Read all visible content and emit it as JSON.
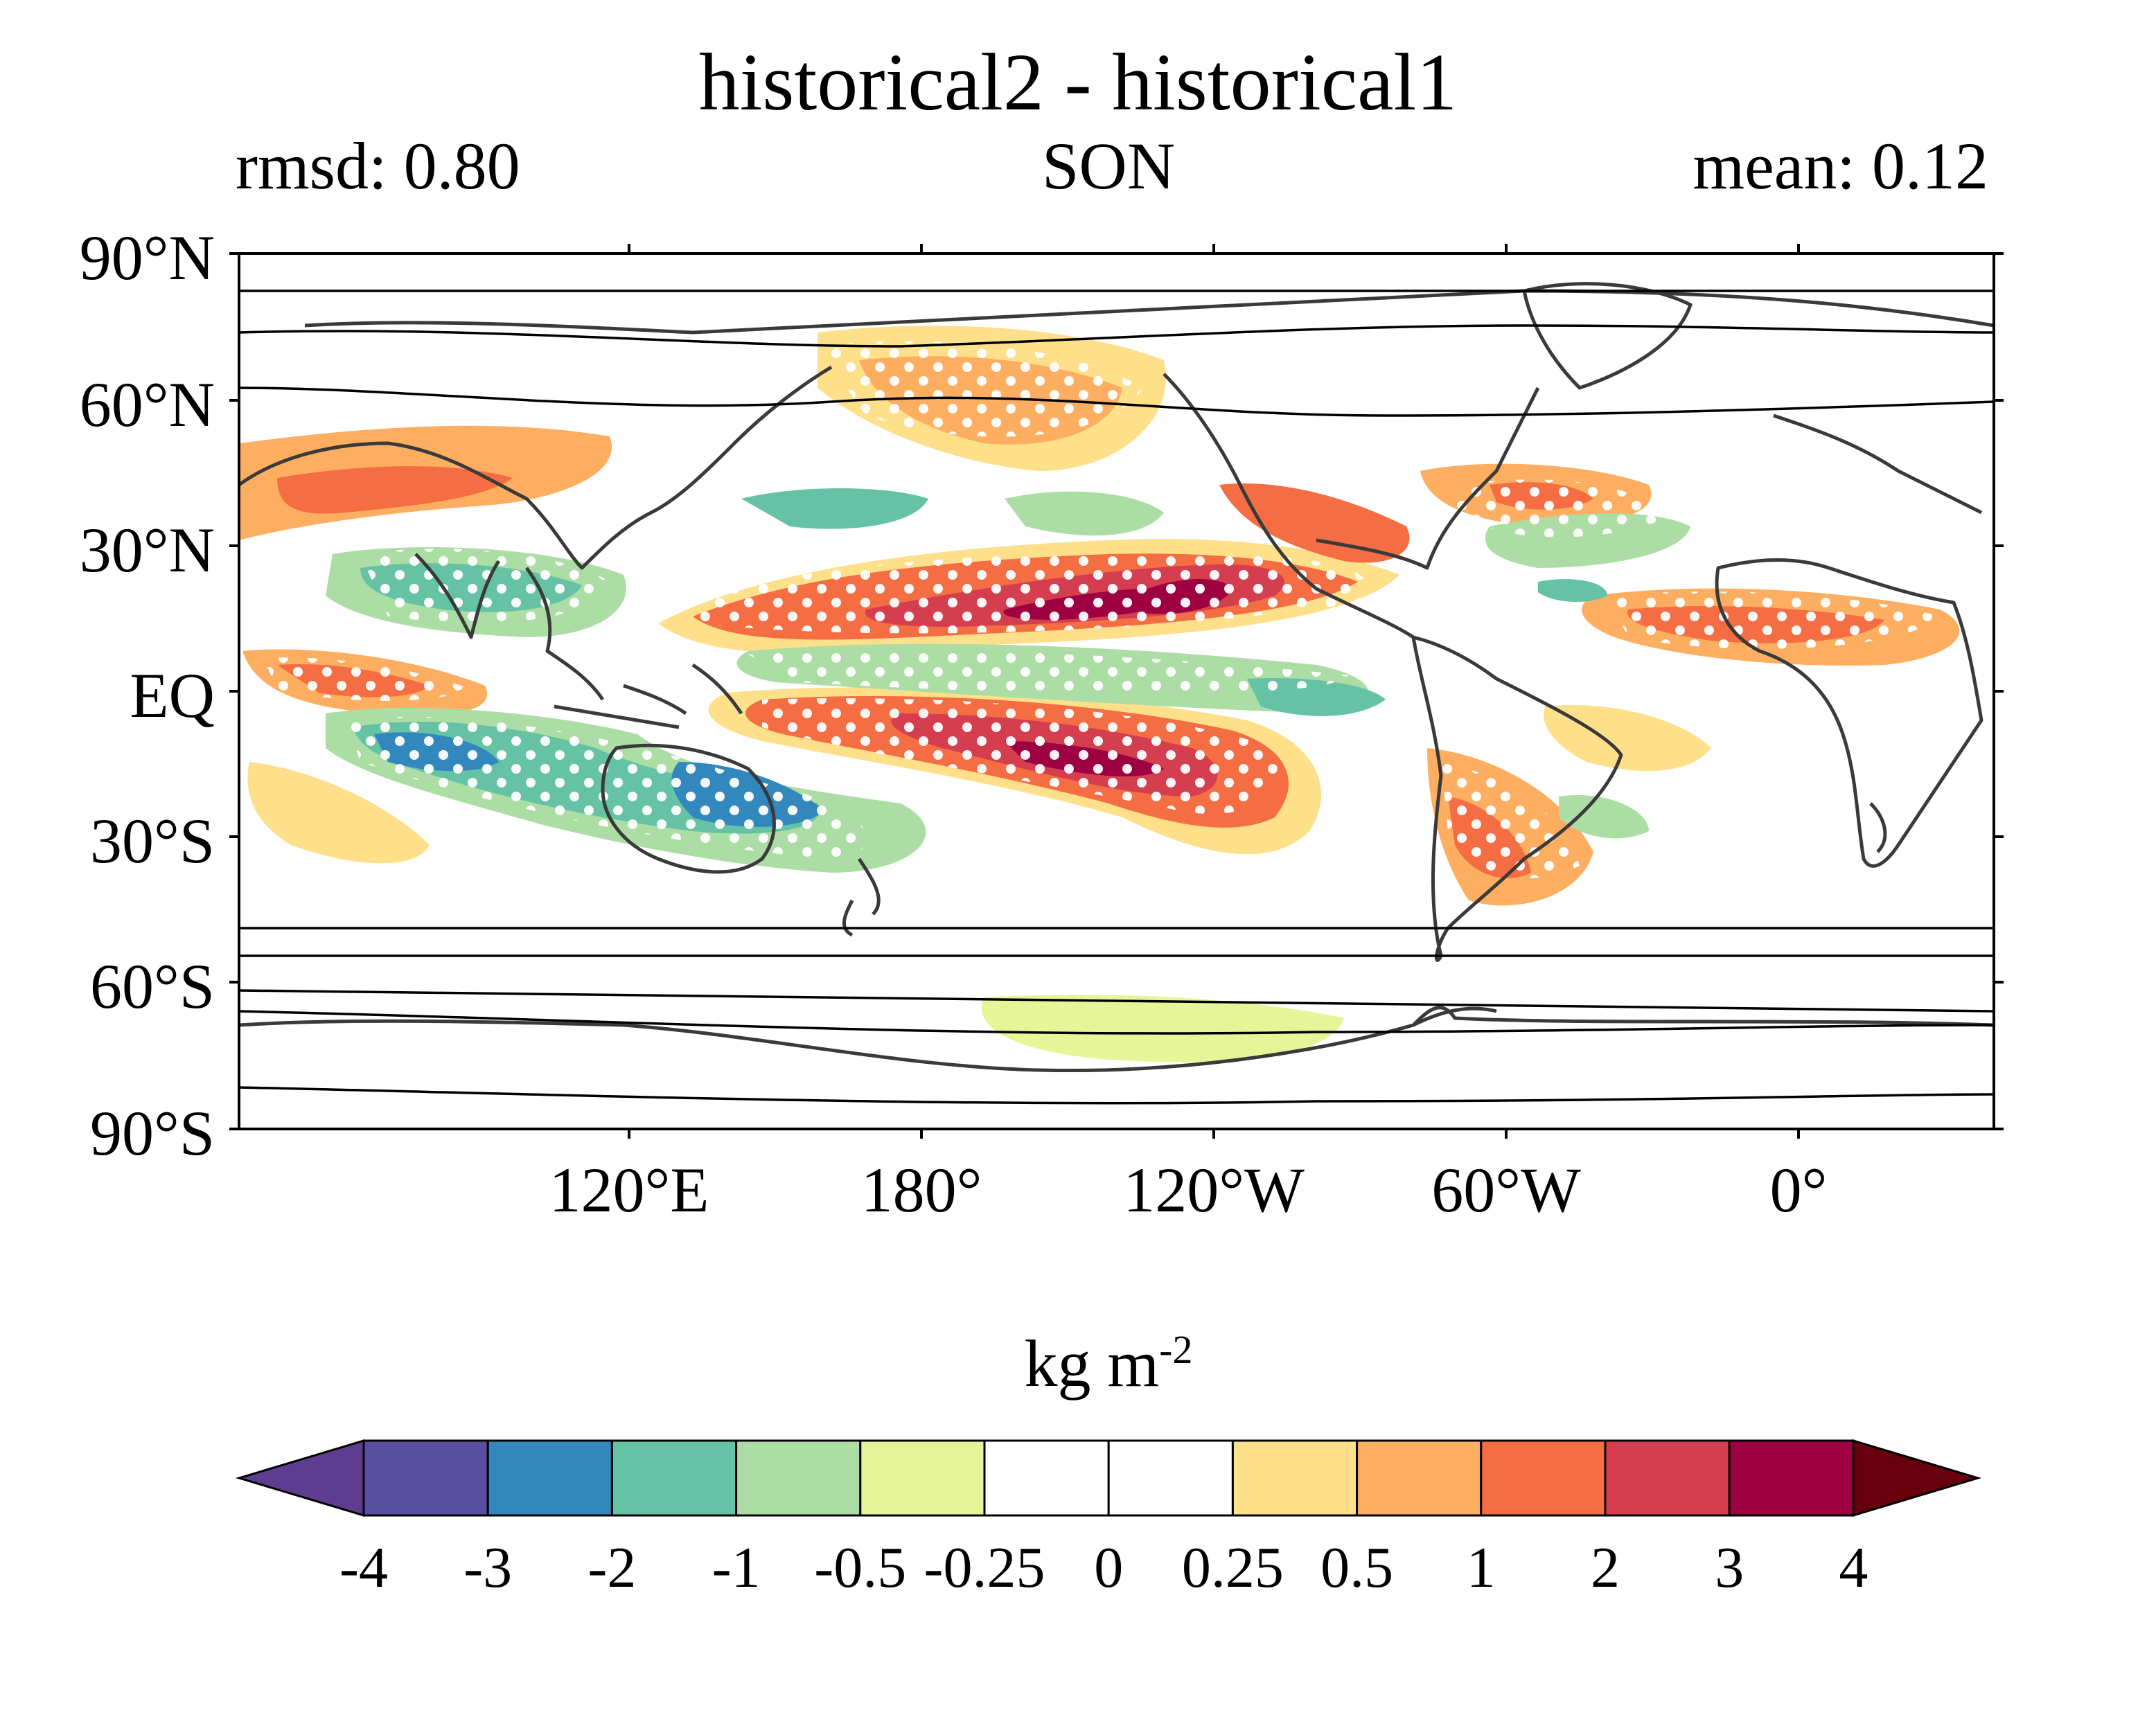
{
  "title": "historical2 - historical1",
  "subtitle_left": "rmsd: 0.80",
  "subtitle_center": "SON",
  "subtitle_right": "mean: 0.12",
  "lat_labels": [
    "90°N",
    "60°N",
    "30°N",
    "EQ",
    "30°S",
    "60°S",
    "90°S"
  ],
  "lon_labels": [
    "120°E",
    "180°",
    "120°W",
    "60°W",
    "0°"
  ],
  "colorbar": {
    "units_text": "kg m",
    "units_exp": "-2",
    "tick_labels": [
      "-4",
      "-3",
      "-2",
      "-1",
      "-0.5",
      "-0.25",
      "0",
      "0.25",
      "0.5",
      "1",
      "2",
      "3",
      "4"
    ],
    "colors": [
      "#5e3c8f",
      "#5a4ea3",
      "#3288bd",
      "#66c2a5",
      "#abdda4",
      "#e6f598",
      "#ffffff",
      "#ffffff",
      "#fee08b",
      "#fdae61",
      "#f46d43",
      "#d53e4f",
      "#9e0142",
      "#67000d"
    ]
  }
}
